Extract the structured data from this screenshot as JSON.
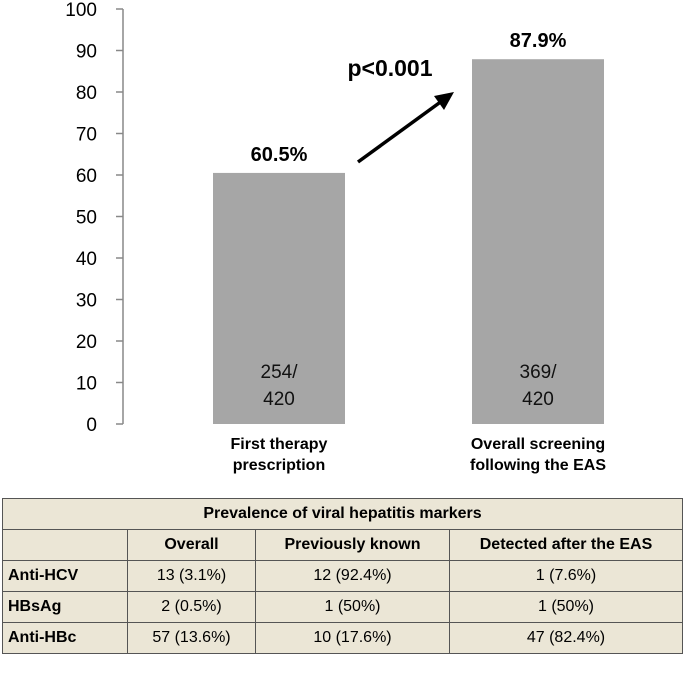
{
  "chart_data": {
    "type": "bar",
    "categories": [
      "First therapy\nprescription",
      "Overall screening\nfollowing the EAS"
    ],
    "values": [
      60.5,
      87.9
    ],
    "value_labels": [
      "60.5%",
      "87.9%"
    ],
    "count_labels": [
      "254/\n420",
      "369/\n420"
    ],
    "ylim": [
      0,
      100
    ],
    "yticks": [
      0,
      10,
      20,
      30,
      40,
      50,
      60,
      70,
      80,
      90,
      100
    ],
    "annotation": "p<0.001",
    "bar_color": "#a6a6a6",
    "grid": false
  },
  "table": {
    "title": "Prevalence of viral hepatitis markers",
    "headers": [
      "",
      "Overall",
      "Previously known",
      "Detected after the EAS"
    ],
    "rows": [
      [
        "Anti-HCV",
        "13 (3.1%)",
        "12 (92.4%)",
        "1 (7.6%)"
      ],
      [
        "HBsAg",
        "2 (0.5%)",
        "1 (50%)",
        "1 (50%)"
      ],
      [
        "Anti-HBc",
        "57 (13.6%)",
        "10 (17.6%)",
        "47 (82.4%)"
      ]
    ]
  }
}
